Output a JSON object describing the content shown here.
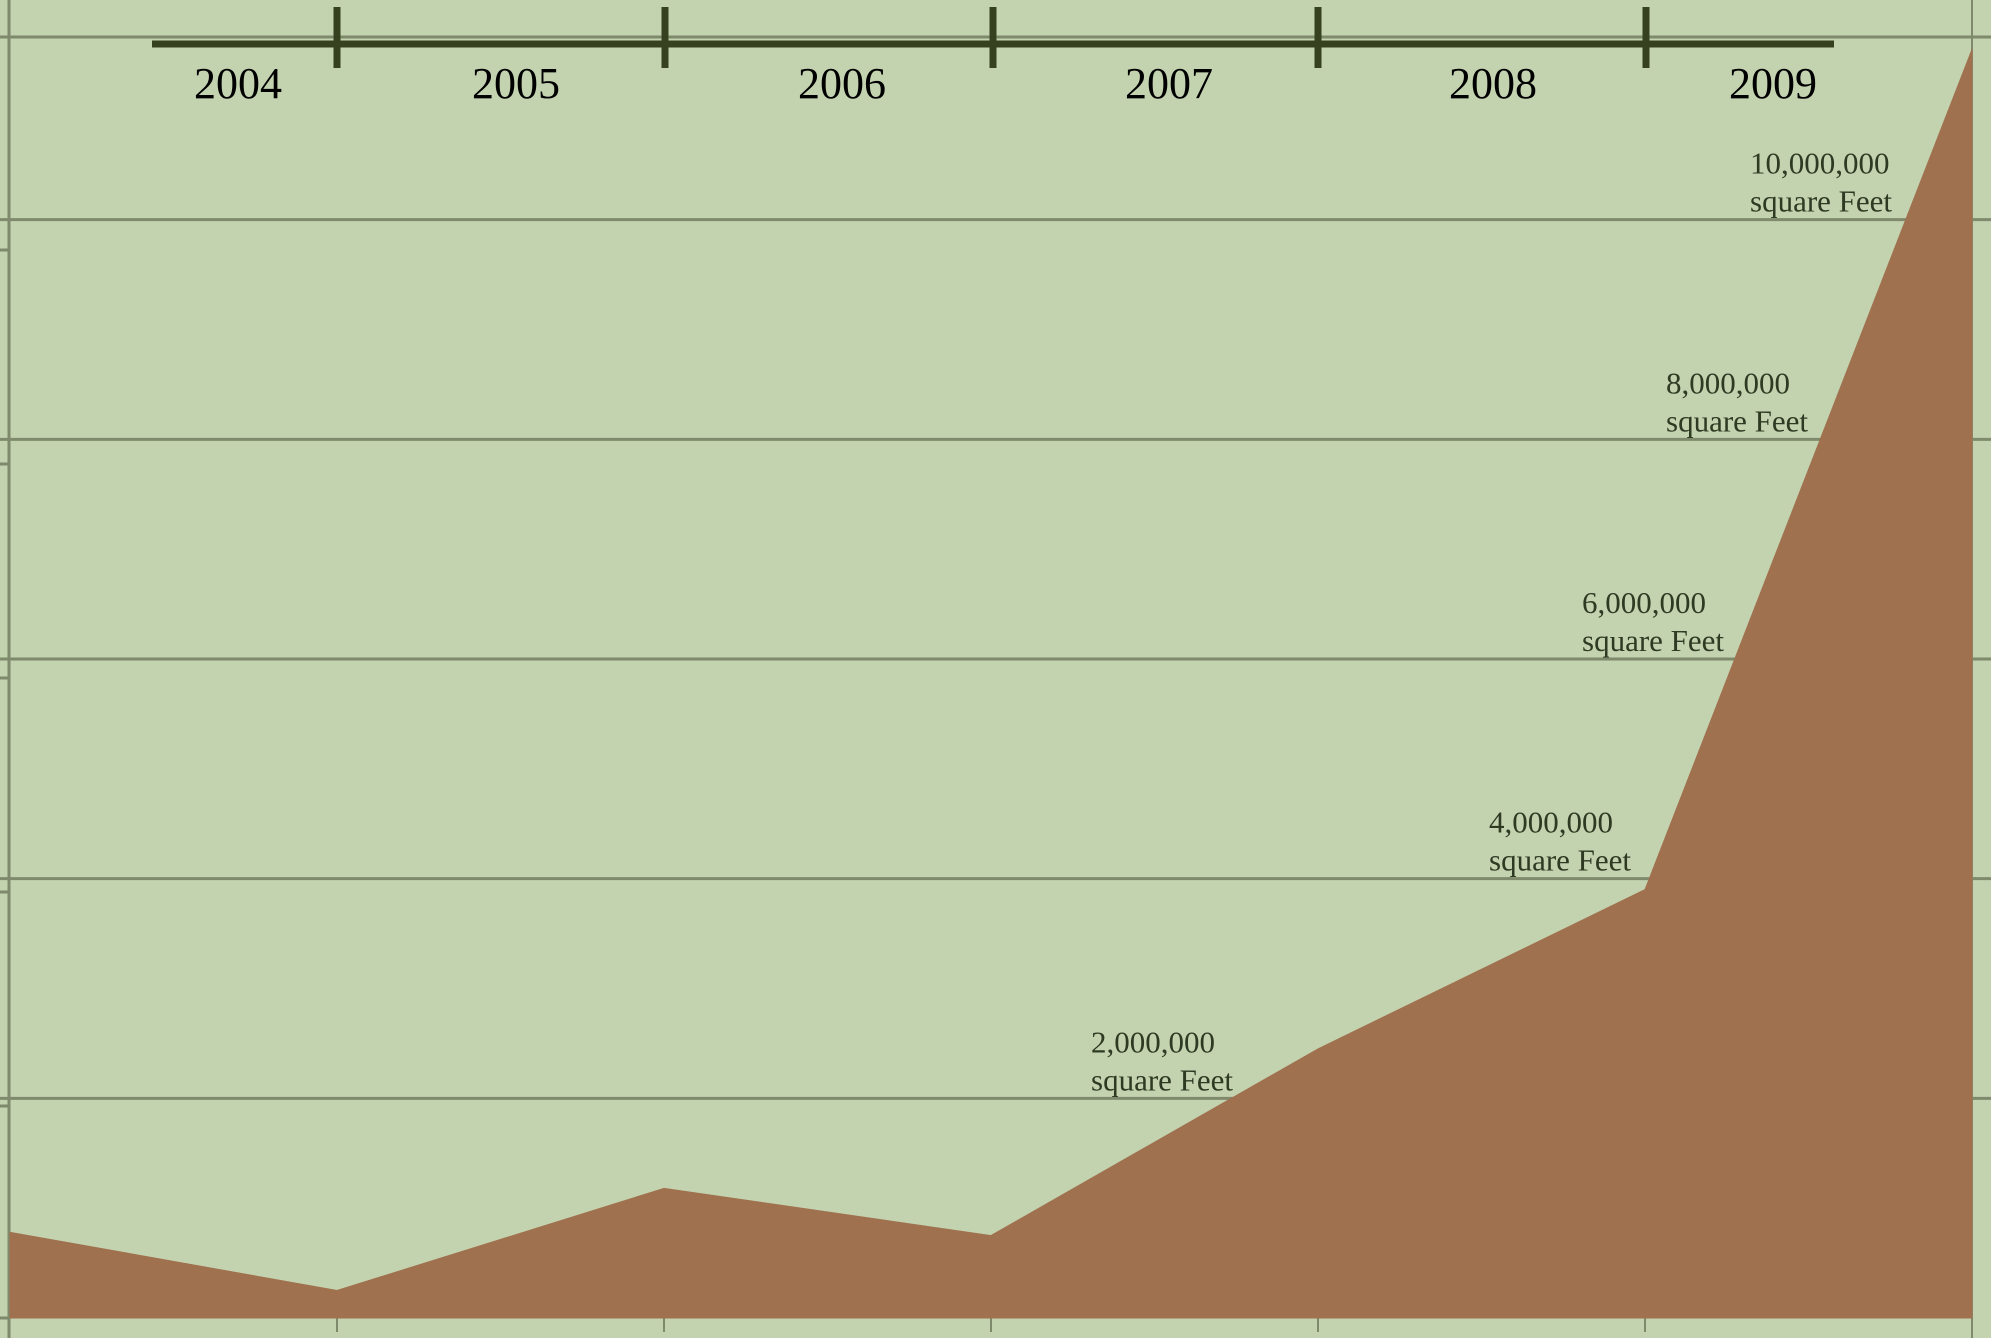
{
  "colors": {
    "plot_background": "#c3d3b0",
    "area_fill": "#a0714f",
    "gridline": "#7f8a6d",
    "timeline": "#36411f",
    "gridline_label_text": "#2e3a22",
    "year_text": "#000000"
  },
  "chart_data": {
    "type": "area",
    "title": "",
    "xlabel": "",
    "ylabel": "",
    "ylim": [
      0,
      12000000
    ],
    "grid": true,
    "legend": "none",
    "timeline": {
      "position": "top",
      "years": [
        "2004",
        "2005",
        "2006",
        "2007",
        "2008",
        "2009"
      ]
    },
    "gridline_labels": [
      {
        "value": 2000000,
        "line1": "2,000,000",
        "line2": "square Feet"
      },
      {
        "value": 4000000,
        "line1": "4,000,000",
        "line2": "square Feet"
      },
      {
        "value": 6000000,
        "line1": "6,000,000",
        "line2": "square Feet"
      },
      {
        "value": 8000000,
        "line1": "8,000,000",
        "line2": "square Feet"
      },
      {
        "value": 10000000,
        "line1": "10,000,000",
        "line2": "square Feet"
      }
    ],
    "x": [
      "start-2004",
      "end-2004",
      "end-2005",
      "end-2006",
      "end-2007",
      "end-2008",
      "end-2009"
    ],
    "values": [
      780000,
      250000,
      1180000,
      750000,
      2450000,
      3900000,
      11550000
    ]
  }
}
